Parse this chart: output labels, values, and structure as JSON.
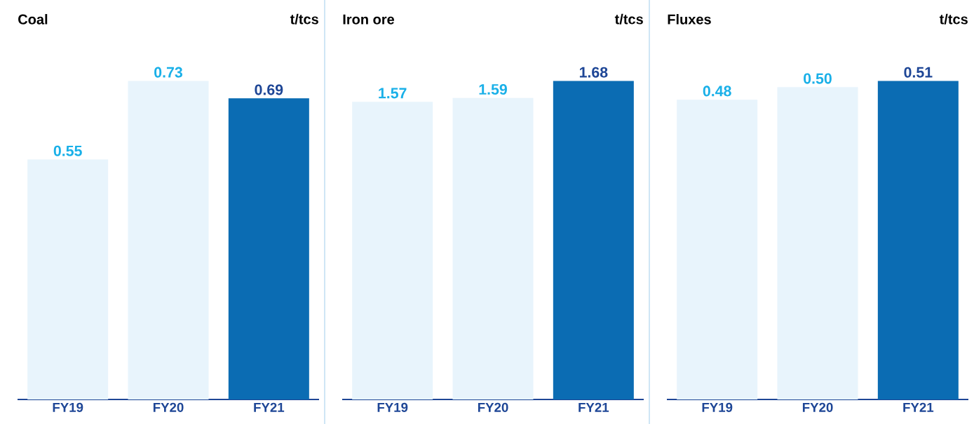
{
  "chart_data": [
    {
      "type": "bar",
      "title": "Coal",
      "ylabel": "t/tcs",
      "categories": [
        "FY19",
        "FY20",
        "FY21"
      ],
      "values": [
        0.55,
        0.73,
        0.69
      ],
      "value_labels": [
        "0.55",
        "0.73",
        "0.69"
      ],
      "colors": [
        "#e8f4fc",
        "#e8f4fc",
        "#0b6cb3"
      ]
    },
    {
      "type": "bar",
      "title": "Iron ore",
      "ylabel": "t/tcs",
      "categories": [
        "FY19",
        "FY20",
        "FY21"
      ],
      "values": [
        1.57,
        1.59,
        1.68
      ],
      "value_labels": [
        "1.57",
        "1.59",
        "1.68"
      ],
      "colors": [
        "#e8f4fc",
        "#e8f4fc",
        "#0b6cb3"
      ]
    },
    {
      "type": "bar",
      "title": "Fluxes",
      "ylabel": "t/tcs",
      "categories": [
        "FY19",
        "FY20",
        "FY21"
      ],
      "values": [
        0.48,
        0.5,
        0.51
      ],
      "value_labels": [
        "0.48",
        "0.50",
        "0.51"
      ],
      "colors": [
        "#e8f4fc",
        "#e8f4fc",
        "#0b6cb3"
      ]
    }
  ]
}
